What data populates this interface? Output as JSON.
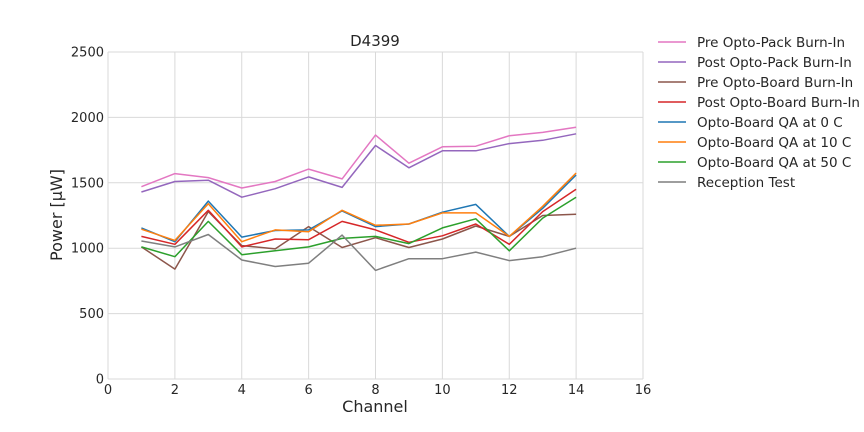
{
  "chart_data": {
    "type": "line",
    "title": "D4399",
    "xlabel": "Channel",
    "ylabel": "Power [µW]",
    "xlim": [
      0,
      16
    ],
    "ylim": [
      0,
      2500
    ],
    "xticks": [
      0,
      2,
      4,
      6,
      8,
      10,
      12,
      14,
      16
    ],
    "yticks": [
      0,
      500,
      1000,
      1500,
      2000,
      2500
    ],
    "grid": true,
    "legend_position": "outside-right-top",
    "x": [
      1,
      2,
      3,
      4,
      5,
      6,
      7,
      8,
      9,
      10,
      11,
      12,
      13,
      14
    ],
    "series": [
      {
        "name": "Pre Opto-Pack Burn-In",
        "color": "#e377c2",
        "values": [
          1470,
          1570,
          1540,
          1460,
          1510,
          1605,
          1530,
          1865,
          1650,
          1775,
          1780,
          1860,
          1885,
          1925
        ]
      },
      {
        "name": "Post Opto-Pack Burn-In",
        "color": "#9467bd",
        "values": [
          1430,
          1510,
          1520,
          1390,
          1455,
          1545,
          1465,
          1785,
          1615,
          1745,
          1745,
          1800,
          1825,
          1875
        ]
      },
      {
        "name": "Pre Opto-Board Burn-In",
        "color": "#8c564b",
        "values": [
          1010,
          840,
          1280,
          1020,
          995,
          1165,
          1005,
          1080,
          1005,
          1070,
          1170,
          1090,
          1250,
          1260
        ]
      },
      {
        "name": "Post Opto-Board Burn-In",
        "color": "#d62728",
        "values": [
          1090,
          1030,
          1290,
          1010,
          1070,
          1065,
          1205,
          1140,
          1045,
          1095,
          1185,
          1030,
          1280,
          1450
        ]
      },
      {
        "name": "Opto-Board QA at 0 C",
        "color": "#1f77b4",
        "values": [
          1155,
          1050,
          1360,
          1085,
          1135,
          1140,
          1285,
          1165,
          1185,
          1275,
          1335,
          1090,
          1305,
          1560
        ]
      },
      {
        "name": "Opto-Board QA at 10 C",
        "color": "#ff7f0e",
        "values": [
          1145,
          1060,
          1340,
          1050,
          1140,
          1125,
          1290,
          1175,
          1185,
          1270,
          1270,
          1090,
          1320,
          1575
        ]
      },
      {
        "name": "Opto-Board QA at 50 C",
        "color": "#2ca02c",
        "values": [
          1010,
          935,
          1205,
          950,
          980,
          1010,
          1075,
          1090,
          1035,
          1155,
          1225,
          980,
          1230,
          1390
        ]
      },
      {
        "name": "Reception Test",
        "color": "#7f7f7f",
        "values": [
          1055,
          1010,
          1105,
          910,
          860,
          885,
          1100,
          830,
          920,
          920,
          970,
          905,
          935,
          1000
        ]
      }
    ]
  }
}
